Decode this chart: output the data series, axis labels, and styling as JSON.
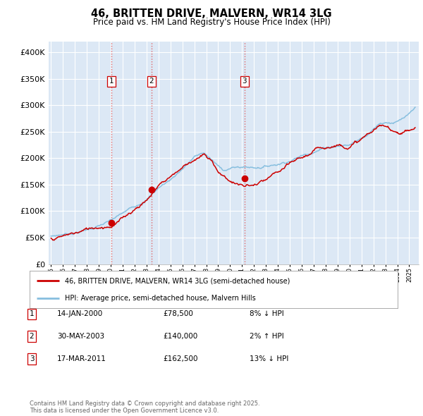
{
  "title": "46, BRITTEN DRIVE, MALVERN, WR14 3LG",
  "subtitle": "Price paid vs. HM Land Registry's House Price Index (HPI)",
  "background_color": "#ffffff",
  "plot_bg_color": "#dce8f5",
  "grid_color": "#ffffff",
  "hpi_color": "#87bfdf",
  "price_color": "#cc0000",
  "ylim": [
    0,
    420000
  ],
  "yticks": [
    0,
    50000,
    100000,
    150000,
    200000,
    250000,
    300000,
    350000,
    400000
  ],
  "legend_items": [
    {
      "label": "46, BRITTEN DRIVE, MALVERN, WR14 3LG (semi-detached house)",
      "color": "#cc0000"
    },
    {
      "label": "HPI: Average price, semi-detached house, Malvern Hills",
      "color": "#87bfdf"
    }
  ],
  "transactions": [
    {
      "num": 1,
      "date": "14-JAN-2000",
      "year": 2000.04,
      "price": 78500,
      "pct": "8%",
      "dir": "↓"
    },
    {
      "num": 2,
      "date": "30-MAY-2003",
      "year": 2003.41,
      "price": 140000,
      "pct": "2%",
      "dir": "↑"
    },
    {
      "num": 3,
      "date": "17-MAR-2011",
      "year": 2011.21,
      "price": 162500,
      "pct": "13%",
      "dir": "↓"
    }
  ],
  "vline_color": "#e05050",
  "footer": "Contains HM Land Registry data © Crown copyright and database right 2025.\nThis data is licensed under the Open Government Licence v3.0.",
  "xmin": 1994.8,
  "xmax": 2025.8,
  "xticks": [
    1995,
    1996,
    1997,
    1998,
    1999,
    2000,
    2001,
    2002,
    2003,
    2004,
    2005,
    2006,
    2007,
    2008,
    2009,
    2010,
    2011,
    2012,
    2013,
    2014,
    2015,
    2016,
    2017,
    2018,
    2019,
    2020,
    2021,
    2022,
    2023,
    2024,
    2025
  ]
}
